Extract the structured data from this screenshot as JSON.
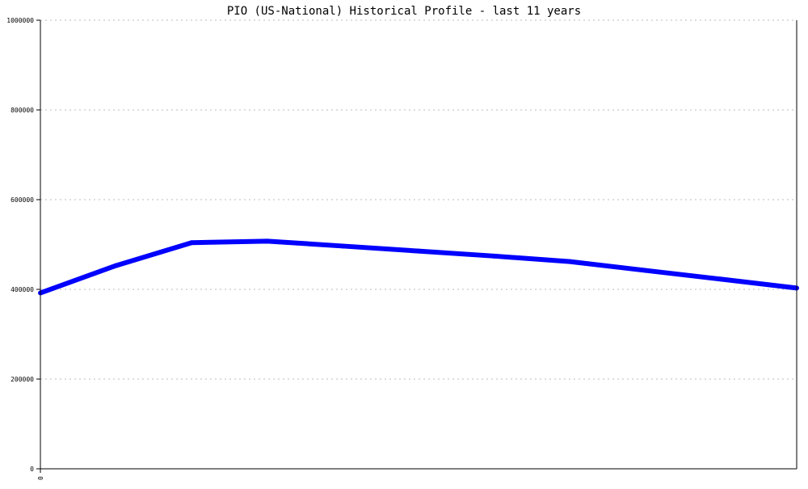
{
  "chart_data": {
    "type": "line",
    "title": "PIO (US-National) Historical Profile - last 11 years",
    "xlabel": "",
    "ylabel": "",
    "x_tick_labels": [
      "0"
    ],
    "y_ticks": [
      0,
      200000,
      400000,
      600000,
      800000,
      1000000
    ],
    "ylim": [
      0,
      1000000
    ],
    "grid": true,
    "series": [
      {
        "values": [
          392000,
          453000,
          504000,
          507500,
          496500,
          485400,
          474200,
          461900,
          442200,
          422700,
          403000
        ],
        "color": "#0000ff"
      }
    ]
  }
}
